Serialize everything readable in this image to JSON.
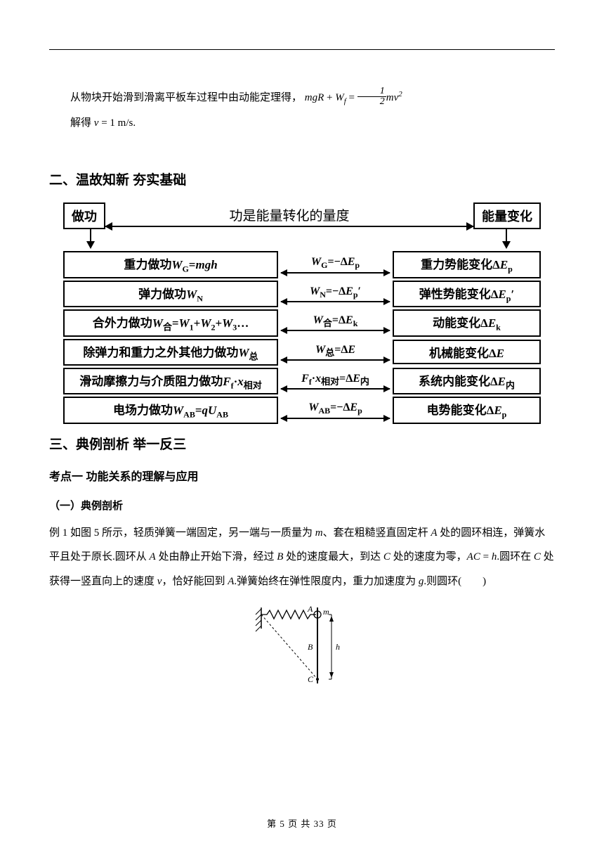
{
  "intro": {
    "line1_a": "从物块开始滑到滑离平板车过程中由动能定理得，",
    "line1_b": "mgR",
    "line1_c": " + ",
    "line1_d": "W",
    "line1_d_sub": "f",
    "line1_e": " = ",
    "frac_num": "1",
    "frac_den": "2",
    "line1_f": "mv",
    "line1_g_sup": "2",
    "line2_a": "解得 ",
    "line2_b": "v",
    "line2_c": " = 1 m/s."
  },
  "section2_title": "二、温故知新  夯实基础",
  "diagram": {
    "top_label": "功是能量转化的量度",
    "top_left": "做功",
    "top_right": "能量变化",
    "rows": [
      {
        "left": "重力做功<span class='ser'>W</span><span class='subr'>G</span>=<span class='ser'>mgh</span>",
        "mid": "<span class='ser'>W</span><span class='subr'>G</span>=−Δ<span class='ser'>E</span><span class='subr'>p</span>",
        "right": "重力势能变化Δ<span class='ser'>E</span><span class='subr'>p</span>"
      },
      {
        "left": "弹力做功<span class='ser'>W</span><span class='subr'>N</span>",
        "mid": "<span class='ser'>W</span><span class='subr'>N</span>=−Δ<span class='ser'>E</span><span class='subr'>p</span>′",
        "right": "弹性势能变化Δ<span class='ser'>E</span><span class='subr'>p</span>′"
      },
      {
        "left": "合外力做功<span class='ser'>W</span><span class='subcn'>合</span>=<span class='ser'>W</span><span class='subr'>1</span>+<span class='ser'>W</span><span class='subr'>2</span>+<span class='ser'>W</span><span class='subr'>3</span>…",
        "mid": "<span class='ser'>W</span><span class='subcn'>合</span>=Δ<span class='ser'>E</span><span class='subr'>k</span>",
        "right": "动能变化Δ<span class='ser'>E</span><span class='subr'>k</span>"
      },
      {
        "left": "除弹力和重力之外其他力做功<span class='ser'>W</span><span class='subcn'>总</span>",
        "mid": "<span class='ser'>W</span><span class='subcn'>总</span>=Δ<span class='ser'>E</span>",
        "right": "机械能变化Δ<span class='ser'>E</span>"
      },
      {
        "left": "滑动摩擦力与介质阻力做功<span class='ser'>F</span><span class='subr'>f</span>·<span class='ser'>x</span><span class='subcn'>相对</span>",
        "mid": "<span class='ser'>F</span><span class='subr'>f</span>·<span class='ser'>x</span><span class='subcn'>相对</span>=Δ<span class='ser'>E</span><span class='subcn'>内</span>",
        "right": "系统内能变化Δ<span class='ser'>E</span><span class='subcn'>内</span>"
      },
      {
        "left": "电场力做功<span class='ser'>W</span><span class='subr'>AB</span>=<span class='ser'>qU</span><span class='subr'>AB</span>",
        "mid": "<span class='ser'>W</span><span class='subr'>AB</span>=−Δ<span class='ser'>E</span><span class='subr'>p</span>",
        "right": "电势能变化Δ<span class='ser'>E</span><span class='subr'>p</span>"
      }
    ]
  },
  "section3_title": "三、典例剖析  举一反三",
  "kaop1_title": "考点一  功能关系的理解与应用",
  "sub1_title": "（一）典例剖析",
  "example1": {
    "prefix": "例 1 如图 5 所示，轻质弹簧一端固定，另一端与一质量为 ",
    "m": "m",
    "a2": "、套在粗糙竖直固定杆 ",
    "A": "A",
    "a3": " 处的圆环相连，弹簧水平且处于原长.圆环从 ",
    "a4": " 处由静止开始下滑，经过 ",
    "B": "B",
    "a5": " 处的速度最大，到达 ",
    "C": "C",
    "a6": " 处的速度为零，",
    "AC": "AC",
    "a7": " = ",
    "h": "h",
    "a8": ".圆环在 ",
    "a9": " 处获得一竖直向上的速度 ",
    "v": "v",
    "a10": "，恰好能回到 ",
    "a11": ".弹簧始终在弹性限度内，重力加速度为 ",
    "g": "g",
    "a12": ".则圆环(　　)"
  },
  "figure": {
    "A": "A",
    "B": "B",
    "C": "C",
    "m": "m",
    "h": "h"
  },
  "footer": "第 5 页 共 33 页"
}
